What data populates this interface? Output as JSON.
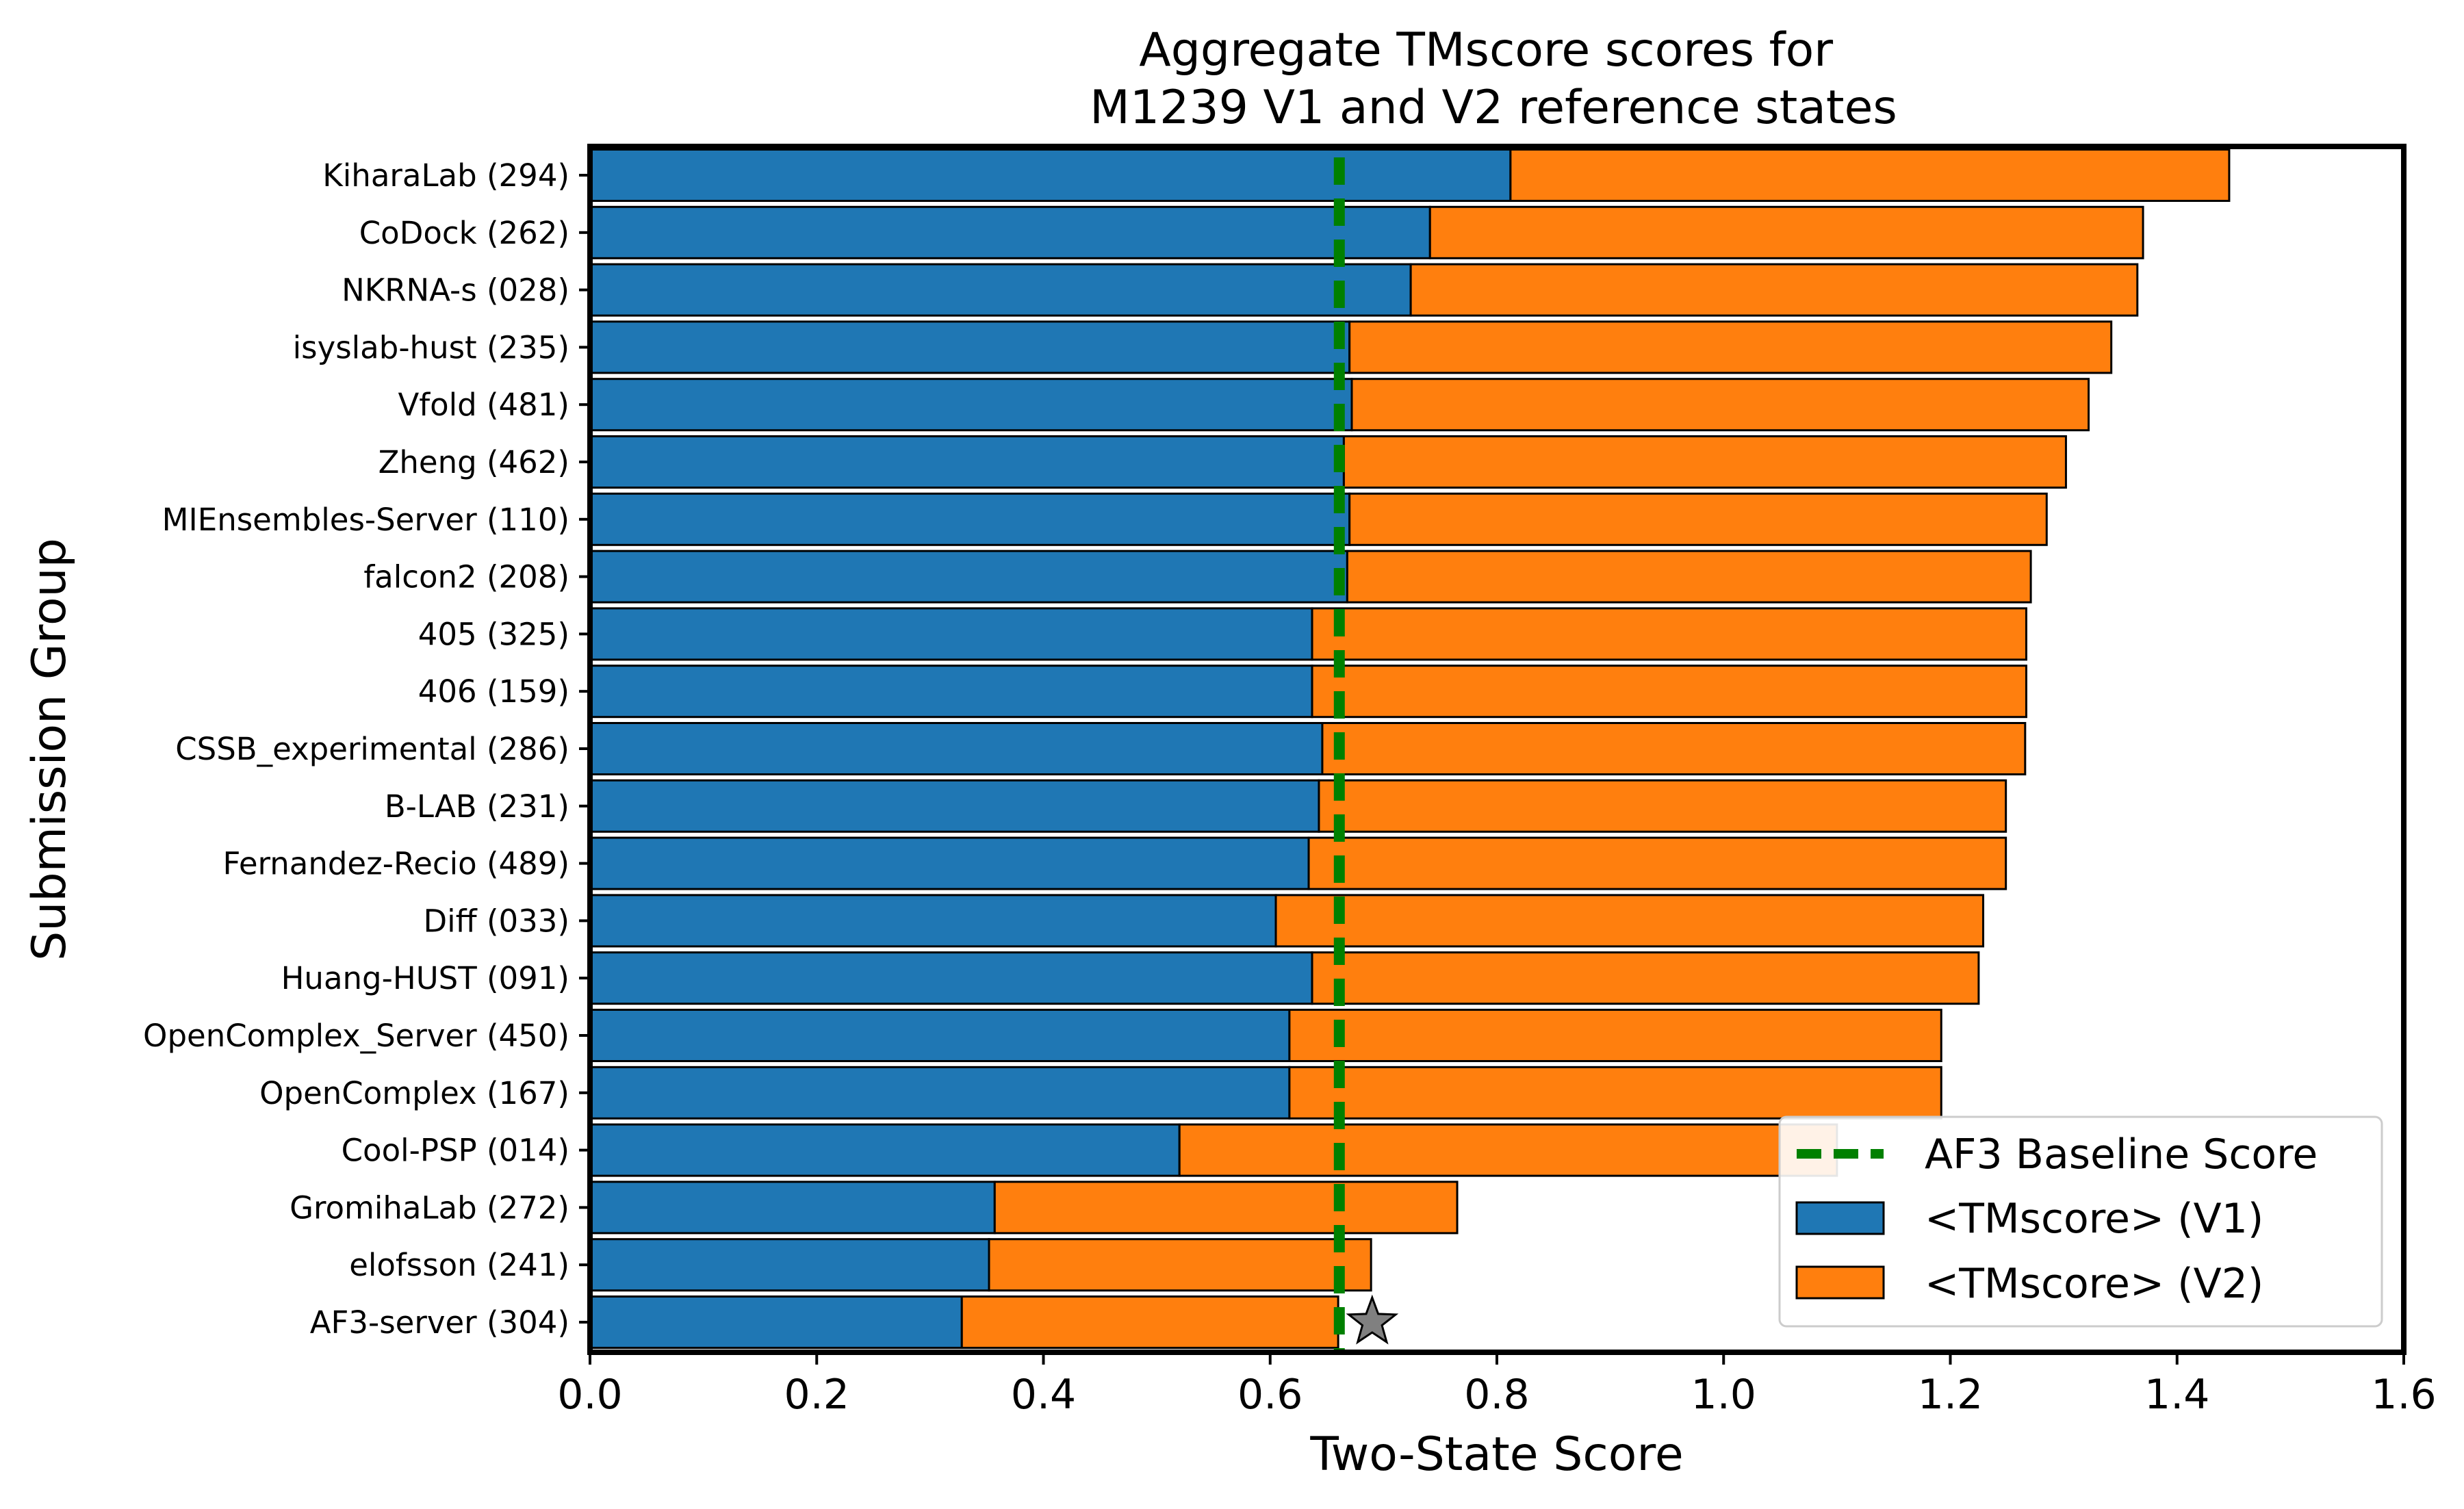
{
  "chart_data": {
    "type": "bar",
    "stacked": true,
    "orientation": "horizontal",
    "title": "Aggregate TMscore scores for\nM1239 V1 and V2 reference states",
    "title_lines": [
      "Aggregate TMscore scores for",
      "M1239 V1 and V2 reference states"
    ],
    "xlabel": "Two-State Score",
    "ylabel": "Submission Group",
    "xlim": [
      0.0,
      1.6
    ],
    "xticks": [
      "0.0",
      "0.2",
      "0.4",
      "0.6",
      "0.8",
      "1.0",
      "1.2",
      "1.4",
      "1.6"
    ],
    "grid": false,
    "legend_position": "lower-right",
    "categories": [
      "KiharaLab (294)",
      "CoDock (262)",
      "NKRNA-s (028)",
      "isyslab-hust (235)",
      "Vfold (481)",
      "Zheng (462)",
      "MIEnsembles-Server (110)",
      "falcon2 (208)",
      "405 (325)",
      "406 (159)",
      "CSSB_experimental (286)",
      "B-LAB (231)",
      "Fernandez-Recio (489)",
      "Diff (033)",
      "Huang-HUST (091)",
      "OpenComplex_Server (450)",
      "OpenComplex (167)",
      "Cool-PSP (014)",
      "GromihaLab (272)",
      "elofsson (241)",
      "AF3-server (304)"
    ],
    "series": [
      {
        "name": "<TMscore> (V1)",
        "color": "#1f77b4",
        "values": [
          0.812,
          0.741,
          0.724,
          0.67,
          0.672,
          0.665,
          0.67,
          0.668,
          0.637,
          0.637,
          0.646,
          0.643,
          0.634,
          0.605,
          0.637,
          0.617,
          0.617,
          0.52,
          0.357,
          0.352,
          0.328
        ]
      },
      {
        "name": "<TMscore> (V2)",
        "color": "#ff7f0e",
        "values": [
          0.634,
          0.629,
          0.641,
          0.672,
          0.65,
          0.637,
          0.615,
          0.603,
          0.63,
          0.63,
          0.62,
          0.606,
          0.615,
          0.624,
          0.588,
          0.575,
          0.575,
          0.58,
          0.408,
          0.337,
          0.332
        ]
      }
    ],
    "baseline": {
      "name": "AF3 Baseline Score",
      "value": 0.661,
      "color": "#008000"
    },
    "marker": {
      "shape": "star",
      "x": 0.69,
      "category": "AF3-server (304)",
      "color": "#808080"
    }
  }
}
